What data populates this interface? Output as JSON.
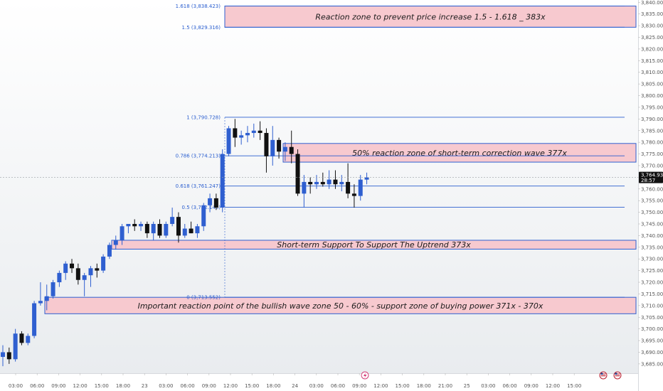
{
  "chart_data": {
    "type": "candlestick",
    "ylim": [
      3681,
      3841
    ],
    "y_ticks": [
      "3,685.000",
      "3,690.000",
      "3,695.000",
      "3,700.000",
      "3,705.000",
      "3,710.000",
      "3,715.000",
      "3,720.000",
      "3,725.000",
      "3,730.000",
      "3,735.000",
      "3,740.000",
      "3,745.000",
      "3,750.000",
      "3,755.000",
      "3,760.000",
      "3,765.000",
      "3,770.000",
      "3,775.000",
      "3,780.000",
      "3,785.000",
      "3,790.000",
      "3,795.000",
      "3,800.000",
      "3,805.000",
      "3,810.000",
      "3,815.000",
      "3,820.000",
      "3,825.000",
      "3,830.000",
      "3,835.000",
      "3,840.000"
    ],
    "x_ticks": [
      "03:00",
      "06:00",
      "09:00",
      "12:00",
      "15:00",
      "18:00",
      "23",
      "03:00",
      "06:00",
      "09:00",
      "12:00",
      "15:00",
      "18:00",
      "24",
      "03:00",
      "06:00",
      "09:00",
      "12:00",
      "15:00",
      "18:00",
      "21:00",
      "25",
      "03:00",
      "06:00",
      "09:00",
      "12:00",
      "15:00"
    ],
    "last_price": {
      "value": 3764.935,
      "label": "3,764.935",
      "timer": "28:57"
    },
    "candles": [
      {
        "o": 3688,
        "h": 3693,
        "l": 3684,
        "c": 3690
      },
      {
        "o": 3690,
        "h": 3692,
        "l": 3685,
        "c": 3687
      },
      {
        "o": 3687,
        "h": 3700,
        "l": 3686,
        "c": 3698
      },
      {
        "o": 3698,
        "h": 3699,
        "l": 3693,
        "c": 3694
      },
      {
        "o": 3694,
        "h": 3698,
        "l": 3693,
        "c": 3697
      },
      {
        "o": 3697,
        "h": 3712,
        "l": 3696,
        "c": 3711
      },
      {
        "o": 3711,
        "h": 3720,
        "l": 3710,
        "c": 3712
      },
      {
        "o": 3712,
        "h": 3719,
        "l": 3708,
        "c": 3714
      },
      {
        "o": 3714,
        "h": 3721,
        "l": 3713,
        "c": 3720
      },
      {
        "o": 3720,
        "h": 3725,
        "l": 3718,
        "c": 3724
      },
      {
        "o": 3724,
        "h": 3729,
        "l": 3721,
        "c": 3728
      },
      {
        "o": 3728,
        "h": 3730,
        "l": 3724,
        "c": 3726
      },
      {
        "o": 3726,
        "h": 3728,
        "l": 3719,
        "c": 3721
      },
      {
        "o": 3721,
        "h": 3724,
        "l": 3714,
        "c": 3723
      },
      {
        "o": 3723,
        "h": 3727,
        "l": 3718,
        "c": 3726
      },
      {
        "o": 3726,
        "h": 3728,
        "l": 3722,
        "c": 3725
      },
      {
        "o": 3725,
        "h": 3732,
        "l": 3724,
        "c": 3731
      },
      {
        "o": 3731,
        "h": 3737,
        "l": 3730,
        "c": 3736
      },
      {
        "o": 3736,
        "h": 3740,
        "l": 3734,
        "c": 3738
      },
      {
        "o": 3738,
        "h": 3745,
        "l": 3736,
        "c": 3744
      },
      {
        "o": 3744,
        "h": 3745,
        "l": 3741,
        "c": 3745
      },
      {
        "o": 3745,
        "h": 3747,
        "l": 3742,
        "c": 3744
      },
      {
        "o": 3744,
        "h": 3746,
        "l": 3742,
        "c": 3745
      },
      {
        "o": 3745,
        "h": 3746,
        "l": 3739,
        "c": 3741
      },
      {
        "o": 3741,
        "h": 3746,
        "l": 3738,
        "c": 3745
      },
      {
        "o": 3745,
        "h": 3747,
        "l": 3739,
        "c": 3740
      },
      {
        "o": 3740,
        "h": 3746,
        "l": 3739,
        "c": 3745
      },
      {
        "o": 3745,
        "h": 3752,
        "l": 3744,
        "c": 3748
      },
      {
        "o": 3748,
        "h": 3750,
        "l": 3737,
        "c": 3740
      },
      {
        "o": 3740,
        "h": 3745,
        "l": 3739,
        "c": 3743
      },
      {
        "o": 3743,
        "h": 3746,
        "l": 3741,
        "c": 3741
      },
      {
        "o": 3741,
        "h": 3745,
        "l": 3739,
        "c": 3744
      },
      {
        "o": 3744,
        "h": 3754,
        "l": 3742,
        "c": 3753
      },
      {
        "o": 3753,
        "h": 3758,
        "l": 3750,
        "c": 3756
      },
      {
        "o": 3756,
        "h": 3758,
        "l": 3751,
        "c": 3752
      },
      {
        "o": 3752,
        "h": 3777,
        "l": 3750,
        "c": 3775
      },
      {
        "o": 3775,
        "h": 3787,
        "l": 3774,
        "c": 3786
      },
      {
        "o": 3786,
        "h": 3790,
        "l": 3778,
        "c": 3782
      },
      {
        "o": 3782,
        "h": 3785,
        "l": 3779,
        "c": 3783
      },
      {
        "o": 3783,
        "h": 3787,
        "l": 3780,
        "c": 3784
      },
      {
        "o": 3784,
        "h": 3788,
        "l": 3782,
        "c": 3785
      },
      {
        "o": 3785,
        "h": 3789,
        "l": 3781,
        "c": 3784
      },
      {
        "o": 3784,
        "h": 3786,
        "l": 3767,
        "c": 3774
      },
      {
        "o": 3774,
        "h": 3787,
        "l": 3770,
        "c": 3781
      },
      {
        "o": 3781,
        "h": 3782,
        "l": 3773,
        "c": 3776
      },
      {
        "o": 3776,
        "h": 3780,
        "l": 3772,
        "c": 3778
      },
      {
        "o": 3778,
        "h": 3785,
        "l": 3771,
        "c": 3775
      },
      {
        "o": 3775,
        "h": 3777,
        "l": 3757,
        "c": 3758
      },
      {
        "o": 3758,
        "h": 3766,
        "l": 3752,
        "c": 3763
      },
      {
        "o": 3763,
        "h": 3765,
        "l": 3758,
        "c": 3762
      },
      {
        "o": 3762,
        "h": 3766,
        "l": 3760,
        "c": 3763
      },
      {
        "o": 3763,
        "h": 3767,
        "l": 3761,
        "c": 3762
      },
      {
        "o": 3762,
        "h": 3768,
        "l": 3760,
        "c": 3764
      },
      {
        "o": 3764,
        "h": 3768,
        "l": 3760,
        "c": 3762
      },
      {
        "o": 3762,
        "h": 3766,
        "l": 3759,
        "c": 3763
      },
      {
        "o": 3763,
        "h": 3771,
        "l": 3756,
        "c": 3758
      },
      {
        "o": 3758,
        "h": 3762,
        "l": 3752,
        "c": 3757
      },
      {
        "o": 3757,
        "h": 3766,
        "l": 3755,
        "c": 3764
      },
      {
        "o": 3764,
        "h": 3767,
        "l": 3762,
        "c": 3764.935
      }
    ],
    "fib_levels": [
      {
        "label": "1.618 (3,838.423)",
        "value": 3838.423
      },
      {
        "label": "1.5 (3,829.316)",
        "value": 3829.316
      },
      {
        "label": "1 (3,790.728)",
        "value": 3790.728
      },
      {
        "label": "0.786 (3,774.213)",
        "value": 3774.213
      },
      {
        "label": "0.618 (3,761.247)",
        "value": 3761.247
      },
      {
        "label": "0.5 (3,752.148)",
        "value": 3752.148
      },
      {
        "label": "0 (3,713.552)",
        "value": 3713.552
      }
    ],
    "zones": [
      {
        "label": "Reaction zone to prevent price increase 1.5 - 1.618 _ 383x",
        "low": 3829.316,
        "high": 3838.423
      },
      {
        "label": "50% reaction zone of short-term correction wave 377x",
        "low": 3771.5,
        "high": 3779.5
      },
      {
        "label": "Short-term Support To Support The Uptrend 373x",
        "low": 3734.2,
        "high": 3738.0
      },
      {
        "label": "Important reaction point of the bullish wave zone 50 - 60% - support zone of buying power 371x - 370x",
        "low": 3706.5,
        "high": 3713.552
      }
    ],
    "colors": {
      "bull": "#2f5fd0",
      "bear": "#111111",
      "zone_fill": "#f7c9cf",
      "zone_border": "#2f5fd0",
      "fib": "#2a5ecf",
      "price_tag": "#111111"
    }
  }
}
